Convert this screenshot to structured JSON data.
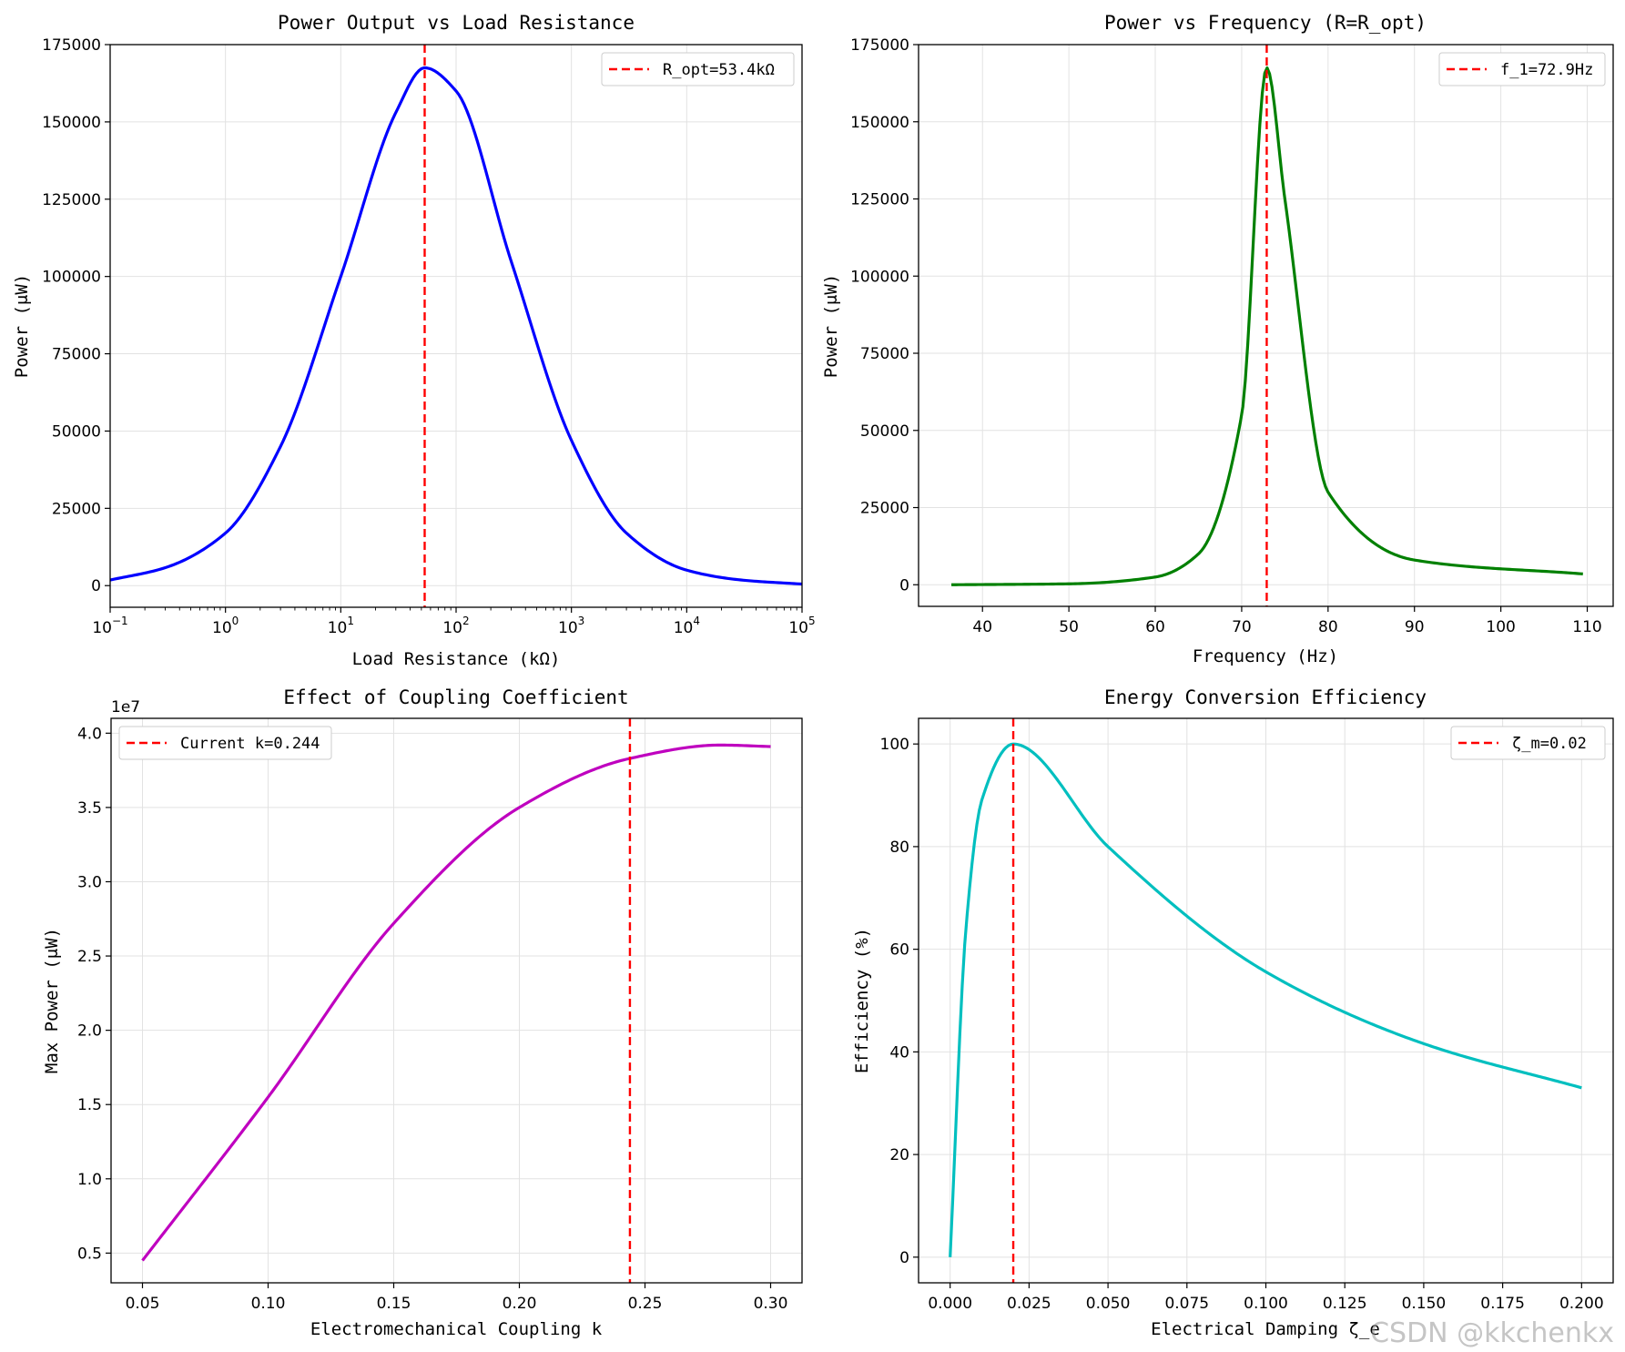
{
  "figure": {
    "watermark": "CSDN @kkchenkx"
  },
  "chart_data": [
    {
      "type": "line",
      "title": "Power Output vs Load Resistance",
      "xlabel": "Load Resistance (kΩ)",
      "ylabel": "Power (μW)",
      "xscale": "log",
      "xlim": [
        0.1,
        100000
      ],
      "ylim": [
        -7000,
        175000
      ],
      "x_ticks": [
        {
          "value": 0.1,
          "label": "10",
          "exp": "−1"
        },
        {
          "value": 1,
          "label": "10",
          "exp": "0"
        },
        {
          "value": 10,
          "label": "10",
          "exp": "1"
        },
        {
          "value": 100,
          "label": "10",
          "exp": "2"
        },
        {
          "value": 1000,
          "label": "10",
          "exp": "3"
        },
        {
          "value": 10000,
          "label": "10",
          "exp": "4"
        },
        {
          "value": 100000,
          "label": "10",
          "exp": "5"
        }
      ],
      "y_ticks": [
        {
          "value": 0,
          "label": "0"
        },
        {
          "value": 25000,
          "label": "25000"
        },
        {
          "value": 50000,
          "label": "50000"
        },
        {
          "value": 75000,
          "label": "75000"
        },
        {
          "value": 100000,
          "label": "100000"
        },
        {
          "value": 125000,
          "label": "125000"
        },
        {
          "value": 150000,
          "label": "150000"
        },
        {
          "value": 175000,
          "label": "175000"
        }
      ],
      "series": [
        {
          "name": "power",
          "color": "#0000ff",
          "x": [
            0.1,
            0.3,
            1,
            3,
            10,
            30,
            53.4,
            100,
            300,
            1000,
            3000,
            10000,
            30000,
            100000
          ],
          "values": [
            1800,
            5800,
            17000,
            45000,
            100000,
            153000,
            167500,
            160000,
            105000,
            47000,
            17000,
            5000,
            1800,
            500
          ]
        }
      ],
      "vline": {
        "x": 53.4,
        "color": "#ff0000",
        "label": "R_opt=53.4kΩ"
      },
      "legend_position": "upper-right",
      "grid": true
    },
    {
      "type": "line",
      "title": "Power vs Frequency (R=R_opt)",
      "xlabel": "Frequency (Hz)",
      "ylabel": "Power (μW)",
      "xlim": [
        32.6,
        113
      ],
      "ylim": [
        -7000,
        175000
      ],
      "x_ticks": [
        {
          "value": 40,
          "label": "40"
        },
        {
          "value": 50,
          "label": "50"
        },
        {
          "value": 60,
          "label": "60"
        },
        {
          "value": 70,
          "label": "70"
        },
        {
          "value": 80,
          "label": "80"
        },
        {
          "value": 90,
          "label": "90"
        },
        {
          "value": 100,
          "label": "100"
        },
        {
          "value": 110,
          "label": "110"
        }
      ],
      "y_ticks": [
        {
          "value": 0,
          "label": "0"
        },
        {
          "value": 25000,
          "label": "25000"
        },
        {
          "value": 50000,
          "label": "50000"
        },
        {
          "value": 75000,
          "label": "75000"
        },
        {
          "value": 100000,
          "label": "100000"
        },
        {
          "value": 125000,
          "label": "125000"
        },
        {
          "value": 150000,
          "label": "150000"
        },
        {
          "value": 175000,
          "label": "175000"
        }
      ],
      "series": [
        {
          "name": "power",
          "color": "#008000",
          "x": [
            36.4,
            50,
            60,
            65,
            70,
            72.9,
            75,
            80,
            90,
            109.5
          ],
          "values": [
            0,
            300,
            2500,
            10000,
            55000,
            167500,
            125000,
            30000,
            8000,
            3500
          ]
        }
      ],
      "vline": {
        "x": 72.9,
        "color": "#ff0000",
        "label": "f_1=72.9Hz"
      },
      "legend_position": "upper-right",
      "grid": true
    },
    {
      "type": "line",
      "title": "Effect of Coupling Coefficient",
      "xlabel": "Electromechanical Coupling k",
      "ylabel": "Max Power (μW)",
      "y_offset_label": "1e7",
      "xlim": [
        0.0375,
        0.3125
      ],
      "ylim": [
        0.3,
        4.1
      ],
      "x_ticks": [
        {
          "value": 0.05,
          "label": "0.05"
        },
        {
          "value": 0.1,
          "label": "0.10"
        },
        {
          "value": 0.15,
          "label": "0.15"
        },
        {
          "value": 0.2,
          "label": "0.20"
        },
        {
          "value": 0.25,
          "label": "0.25"
        },
        {
          "value": 0.3,
          "label": "0.30"
        }
      ],
      "y_ticks": [
        {
          "value": 0.5,
          "label": "0.5"
        },
        {
          "value": 1.0,
          "label": "1.0"
        },
        {
          "value": 1.5,
          "label": "1.5"
        },
        {
          "value": 2.0,
          "label": "2.0"
        },
        {
          "value": 2.5,
          "label": "2.5"
        },
        {
          "value": 3.0,
          "label": "3.0"
        },
        {
          "value": 3.5,
          "label": "3.5"
        },
        {
          "value": 4.0,
          "label": "4.0"
        }
      ],
      "series": [
        {
          "name": "max power (×1e7 μW)",
          "color": "#bf00bf",
          "x": [
            0.05,
            0.1,
            0.15,
            0.2,
            0.244,
            0.28,
            0.3
          ],
          "values": [
            0.45,
            1.55,
            2.72,
            3.5,
            3.83,
            3.92,
            3.91
          ]
        }
      ],
      "vline": {
        "x": 0.244,
        "color": "#ff0000",
        "label": "Current k=0.244"
      },
      "legend_position": "upper-left",
      "grid": true
    },
    {
      "type": "line",
      "title": "Energy Conversion Efficiency",
      "xlabel": "Electrical Damping ζ_e",
      "ylabel": "Efficiency (%)",
      "xlim": [
        -0.01,
        0.21
      ],
      "ylim": [
        -5,
        105
      ],
      "x_ticks": [
        {
          "value": 0,
          "label": "0.000"
        },
        {
          "value": 0.025,
          "label": "0.025"
        },
        {
          "value": 0.05,
          "label": "0.050"
        },
        {
          "value": 0.075,
          "label": "0.075"
        },
        {
          "value": 0.1,
          "label": "0.100"
        },
        {
          "value": 0.125,
          "label": "0.125"
        },
        {
          "value": 0.15,
          "label": "0.150"
        },
        {
          "value": 0.175,
          "label": "0.175"
        },
        {
          "value": 0.2,
          "label": "0.200"
        }
      ],
      "y_ticks": [
        {
          "value": 0,
          "label": "0"
        },
        {
          "value": 20,
          "label": "20"
        },
        {
          "value": 40,
          "label": "40"
        },
        {
          "value": 60,
          "label": "60"
        },
        {
          "value": 80,
          "label": "80"
        },
        {
          "value": 100,
          "label": "100"
        }
      ],
      "series": [
        {
          "name": "efficiency",
          "color": "#00bfbf",
          "x": [
            0,
            0.005,
            0.01,
            0.02,
            0.05,
            0.1,
            0.15,
            0.2
          ],
          "values": [
            0,
            64,
            89,
            100,
            80,
            55.6,
            41.6,
            33
          ]
        }
      ],
      "vline": {
        "x": 0.02,
        "color": "#ff0000",
        "label": "ζ_m=0.02"
      },
      "legend_position": "upper-right",
      "grid": true
    }
  ]
}
